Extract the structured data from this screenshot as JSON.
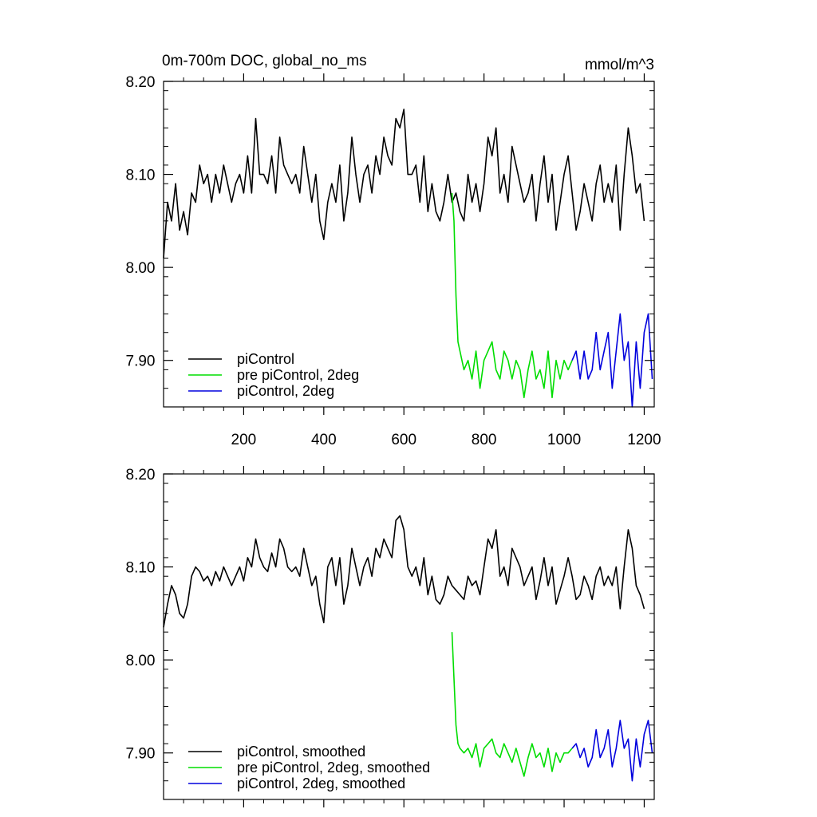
{
  "figure": {
    "title_left": "0m-700m DOC, global_no_ms",
    "title_right": "mmol/m^3"
  },
  "chart_data": [
    {
      "type": "line",
      "xlim": [
        0,
        1225
      ],
      "ylim": [
        7.85,
        8.2
      ],
      "x_ticks": [
        200,
        400,
        600,
        800,
        1000,
        1200
      ],
      "x_tick_labels": [
        "200",
        "400",
        "600",
        "800",
        "1000",
        "1200"
      ],
      "y_ticks": [
        7.9,
        8.0,
        8.1,
        8.2
      ],
      "y_tick_labels": [
        "7.90",
        "8.00",
        "8.10",
        "8.20"
      ],
      "legend": "bottom-left",
      "grid": false,
      "series": [
        {
          "name": "piControl",
          "color": "#000000",
          "x": [
            0,
            10,
            20,
            30,
            40,
            50,
            60,
            70,
            80,
            90,
            100,
            110,
            120,
            130,
            140,
            150,
            160,
            170,
            180,
            190,
            200,
            210,
            220,
            230,
            240,
            250,
            260,
            270,
            280,
            290,
            300,
            310,
            320,
            330,
            340,
            350,
            360,
            370,
            380,
            390,
            400,
            410,
            420,
            430,
            440,
            450,
            460,
            470,
            480,
            490,
            500,
            510,
            520,
            530,
            540,
            550,
            560,
            570,
            580,
            590,
            600,
            610,
            620,
            630,
            640,
            650,
            660,
            670,
            680,
            690,
            700,
            710,
            720,
            730,
            740,
            750,
            760,
            770,
            780,
            790,
            800,
            810,
            820,
            830,
            840,
            850,
            860,
            870,
            880,
            890,
            900,
            910,
            920,
            930,
            940,
            950,
            960,
            970,
            980,
            990,
            1000,
            1010,
            1020,
            1030,
            1040,
            1050,
            1060,
            1070,
            1080,
            1090,
            1100,
            1110,
            1120,
            1130,
            1140,
            1150,
            1160,
            1170,
            1180,
            1190,
            1200
          ],
          "y": [
            8.01,
            8.07,
            8.05,
            8.09,
            8.04,
            8.06,
            8.035,
            8.08,
            8.07,
            8.11,
            8.09,
            8.1,
            8.07,
            8.1,
            8.08,
            8.11,
            8.09,
            8.07,
            8.09,
            8.1,
            8.08,
            8.12,
            8.08,
            8.16,
            8.1,
            8.1,
            8.09,
            8.12,
            8.08,
            8.14,
            8.11,
            8.1,
            8.09,
            8.1,
            8.08,
            8.13,
            8.1,
            8.07,
            8.1,
            8.05,
            8.03,
            8.07,
            8.09,
            8.07,
            8.11,
            8.05,
            8.08,
            8.14,
            8.1,
            8.07,
            8.1,
            8.11,
            8.08,
            8.12,
            8.1,
            8.14,
            8.12,
            8.11,
            8.16,
            8.15,
            8.17,
            8.1,
            8.1,
            8.11,
            8.07,
            8.12,
            8.06,
            8.09,
            8.06,
            8.05,
            8.07,
            8.1,
            8.07,
            8.08,
            8.06,
            8.05,
            8.1,
            8.07,
            8.09,
            8.06,
            8.09,
            8.14,
            8.12,
            8.15,
            8.08,
            8.1,
            8.07,
            8.13,
            8.11,
            8.09,
            8.07,
            8.08,
            8.1,
            8.05,
            8.09,
            8.12,
            8.07,
            8.1,
            8.04,
            8.07,
            8.1,
            8.12,
            8.08,
            8.04,
            8.06,
            8.09,
            8.07,
            8.05,
            8.09,
            8.11,
            8.07,
            8.09,
            8.07,
            8.11,
            8.04,
            8.1,
            8.15,
            8.12,
            8.08,
            8.09,
            8.05
          ]
        },
        {
          "name": "pre piControl, 2deg",
          "color": "#00dd00",
          "x": [
            720,
            725,
            730,
            735,
            740,
            750,
            760,
            770,
            780,
            790,
            800,
            810,
            820,
            830,
            840,
            850,
            860,
            870,
            880,
            890,
            900,
            910,
            920,
            930,
            940,
            950,
            960,
            970,
            980,
            990,
            1000,
            1010,
            1020
          ],
          "y": [
            8.08,
            8.05,
            7.97,
            7.92,
            7.91,
            7.89,
            7.9,
            7.88,
            7.91,
            7.87,
            7.9,
            7.91,
            7.92,
            7.89,
            7.88,
            7.91,
            7.9,
            7.88,
            7.9,
            7.89,
            7.86,
            7.89,
            7.91,
            7.88,
            7.89,
            7.87,
            7.91,
            7.86,
            7.9,
            7.88,
            7.9,
            7.89,
            7.9
          ]
        },
        {
          "name": "piControl, 2deg",
          "color": "#0000dd",
          "x": [
            1020,
            1030,
            1040,
            1050,
            1060,
            1070,
            1080,
            1090,
            1100,
            1110,
            1120,
            1130,
            1140,
            1150,
            1160,
            1170,
            1180,
            1190,
            1200,
            1210,
            1220
          ],
          "y": [
            7.9,
            7.91,
            7.88,
            7.91,
            7.88,
            7.89,
            7.93,
            7.89,
            7.91,
            7.93,
            7.87,
            7.91,
            7.95,
            7.9,
            7.92,
            7.85,
            7.92,
            7.87,
            7.93,
            7.95,
            7.88
          ]
        }
      ]
    },
    {
      "type": "line",
      "xlim": [
        0,
        1225
      ],
      "ylim": [
        7.85,
        8.2
      ],
      "y_ticks": [
        7.9,
        8.0,
        8.1,
        8.2
      ],
      "y_tick_labels": [
        "7.90",
        "8.00",
        "8.10",
        "8.20"
      ],
      "x_ticks": [
        200,
        400,
        600,
        800,
        1000,
        1200
      ],
      "legend": "bottom-left",
      "grid": false,
      "series": [
        {
          "name": "piControl, smoothed",
          "color": "#000000",
          "x": [
            0,
            10,
            20,
            30,
            40,
            50,
            60,
            70,
            80,
            90,
            100,
            110,
            120,
            130,
            140,
            150,
            160,
            170,
            180,
            190,
            200,
            210,
            220,
            230,
            240,
            250,
            260,
            270,
            280,
            290,
            300,
            310,
            320,
            330,
            340,
            350,
            360,
            370,
            380,
            390,
            400,
            410,
            420,
            430,
            440,
            450,
            460,
            470,
            480,
            490,
            500,
            510,
            520,
            530,
            540,
            550,
            560,
            570,
            580,
            590,
            600,
            610,
            620,
            630,
            640,
            650,
            660,
            670,
            680,
            690,
            700,
            710,
            720,
            730,
            740,
            750,
            760,
            770,
            780,
            790,
            800,
            810,
            820,
            830,
            840,
            850,
            860,
            870,
            880,
            890,
            900,
            910,
            920,
            930,
            940,
            950,
            960,
            970,
            980,
            990,
            1000,
            1010,
            1020,
            1030,
            1040,
            1050,
            1060,
            1070,
            1080,
            1090,
            1100,
            1110,
            1120,
            1130,
            1140,
            1150,
            1160,
            1170,
            1180,
            1190,
            1200
          ],
          "y": [
            8.035,
            8.06,
            8.08,
            8.07,
            8.05,
            8.045,
            8.06,
            8.09,
            8.1,
            8.095,
            8.085,
            8.09,
            8.08,
            8.095,
            8.085,
            8.1,
            8.09,
            8.08,
            8.09,
            8.1,
            8.085,
            8.11,
            8.1,
            8.13,
            8.11,
            8.1,
            8.095,
            8.115,
            8.1,
            8.13,
            8.12,
            8.1,
            8.095,
            8.1,
            8.09,
            8.12,
            8.1,
            8.08,
            8.09,
            8.06,
            8.04,
            8.1,
            8.11,
            8.08,
            8.11,
            8.06,
            8.08,
            8.12,
            8.1,
            8.08,
            8.1,
            8.11,
            8.09,
            8.12,
            8.11,
            8.13,
            8.12,
            8.11,
            8.15,
            8.155,
            8.14,
            8.1,
            8.09,
            8.1,
            8.08,
            8.11,
            8.07,
            8.09,
            8.065,
            8.06,
            8.07,
            8.09,
            8.08,
            8.075,
            8.07,
            8.065,
            8.09,
            8.08,
            8.085,
            8.07,
            8.1,
            8.13,
            8.12,
            8.14,
            8.09,
            8.1,
            8.08,
            8.12,
            8.11,
            8.1,
            8.08,
            8.09,
            8.1,
            8.065,
            8.085,
            8.11,
            8.08,
            8.1,
            8.06,
            8.075,
            8.09,
            8.11,
            8.09,
            8.065,
            8.07,
            8.09,
            8.08,
            8.065,
            8.09,
            8.1,
            8.08,
            8.09,
            8.08,
            8.1,
            8.055,
            8.1,
            8.14,
            8.12,
            8.08,
            8.07,
            8.055
          ]
        },
        {
          "name": "pre piControl, 2deg, smoothed",
          "color": "#00dd00",
          "x": [
            720,
            725,
            730,
            735,
            740,
            750,
            760,
            770,
            780,
            790,
            800,
            810,
            820,
            830,
            840,
            850,
            860,
            870,
            880,
            890,
            900,
            910,
            920,
            930,
            940,
            950,
            960,
            970,
            980,
            990,
            1000,
            1010,
            1020
          ],
          "y": [
            8.03,
            7.98,
            7.93,
            7.91,
            7.905,
            7.9,
            7.905,
            7.895,
            7.91,
            7.885,
            7.905,
            7.91,
            7.915,
            7.9,
            7.895,
            7.91,
            7.9,
            7.89,
            7.905,
            7.89,
            7.875,
            7.895,
            7.91,
            7.895,
            7.9,
            7.885,
            7.905,
            7.88,
            7.9,
            7.89,
            7.9,
            7.9,
            7.905
          ]
        },
        {
          "name": "piControl, 2deg, smoothed",
          "color": "#0000dd",
          "x": [
            1020,
            1030,
            1040,
            1050,
            1060,
            1070,
            1080,
            1090,
            1100,
            1110,
            1120,
            1130,
            1140,
            1150,
            1160,
            1170,
            1180,
            1190,
            1200,
            1210,
            1220
          ],
          "y": [
            7.905,
            7.91,
            7.895,
            7.905,
            7.885,
            7.895,
            7.925,
            7.895,
            7.905,
            7.925,
            7.885,
            7.905,
            7.935,
            7.905,
            7.915,
            7.87,
            7.915,
            7.885,
            7.92,
            7.935,
            7.9
          ]
        }
      ]
    }
  ]
}
